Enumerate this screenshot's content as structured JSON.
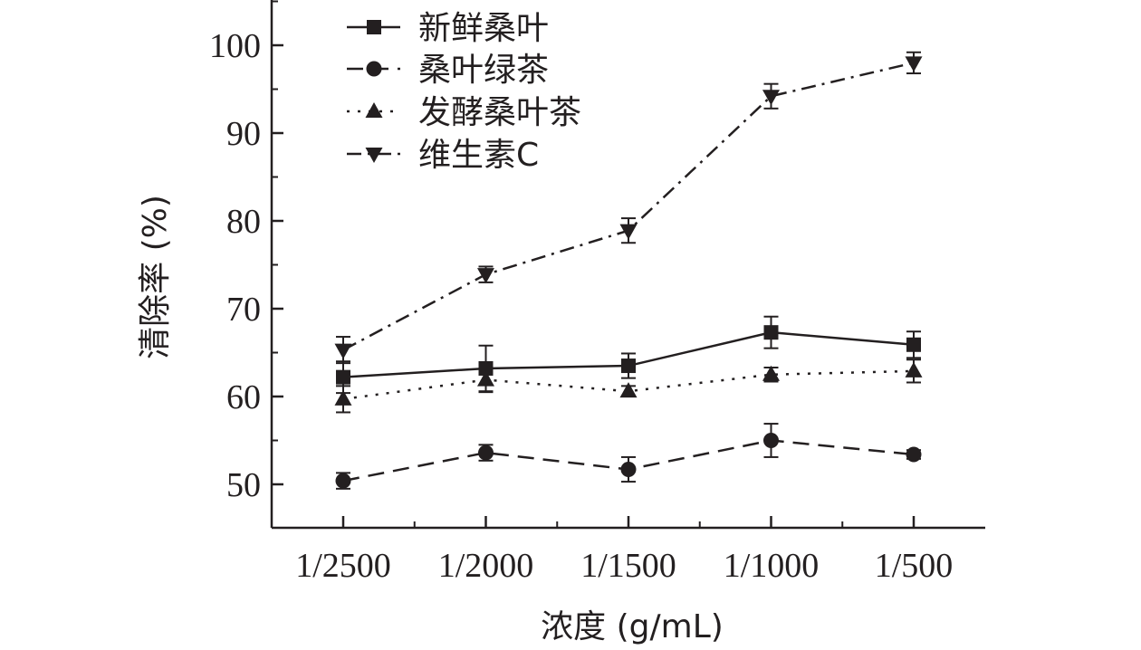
{
  "chart_data": {
    "type": "line",
    "xlabel": "浓度 (g/mL)",
    "ylabel": "清除率 (%)",
    "categories": [
      "1/2500",
      "1/2000",
      "1/1500",
      "1/1000",
      "1/500"
    ],
    "ylim": [
      45,
      105
    ],
    "yticks": [
      50,
      60,
      70,
      80,
      90,
      100
    ],
    "grid": false,
    "legend_position": "top-left",
    "series": [
      {
        "name": "新鲜桑叶",
        "values": [
          62.2,
          63.2,
          63.5,
          67.3,
          65.9
        ],
        "errors": [
          1.8,
          2.6,
          1.4,
          1.8,
          1.5
        ],
        "marker": "square",
        "line_style": "solid"
      },
      {
        "name": "桑叶绿茶",
        "values": [
          50.4,
          53.6,
          51.7,
          55.0,
          53.4
        ],
        "errors": [
          0.9,
          0.9,
          1.4,
          1.9,
          0.5
        ],
        "marker": "circle",
        "line_style": "dashed"
      },
      {
        "name": "发酵桑叶茶",
        "values": [
          59.7,
          61.9,
          60.6,
          62.5,
          62.9
        ],
        "errors": [
          1.5,
          1.4,
          0.6,
          0.8,
          1.3
        ],
        "marker": "triangle-up",
        "line_style": "dotted"
      },
      {
        "name": "维生素C",
        "values": [
          65.3,
          73.9,
          78.9,
          94.2,
          98.0
        ],
        "errors": [
          1.5,
          0.9,
          1.4,
          1.4,
          1.2
        ],
        "marker": "triangle-down",
        "line_style": "dash-dot"
      }
    ],
    "colors": {
      "line": "#231f20",
      "marker": "#231f20"
    }
  }
}
